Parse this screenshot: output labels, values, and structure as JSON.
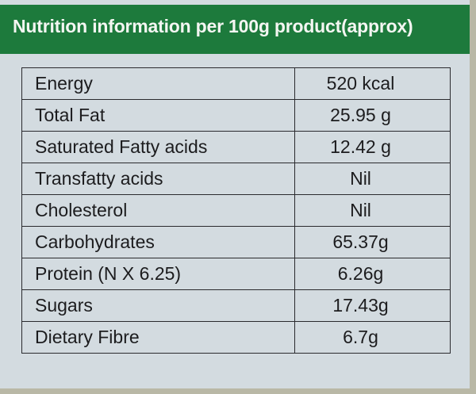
{
  "header": {
    "title": "Nutrition information per 100g product(approx)"
  },
  "table": {
    "rows": [
      [
        "Energy",
        "520 kcal"
      ],
      [
        "Total Fat",
        "25.95 g"
      ],
      [
        "Saturated Fatty acids",
        "12.42 g"
      ],
      [
        "Transfatty acids",
        "Nil"
      ],
      [
        "Cholesterol",
        "Nil"
      ],
      [
        "Carbohydrates",
        "65.37g"
      ],
      [
        "Protein (N X 6.25)",
        "6.26g"
      ],
      [
        "Sugars",
        "17.43g"
      ],
      [
        "Dietary Fibre",
        "6.7g"
      ]
    ]
  }
}
